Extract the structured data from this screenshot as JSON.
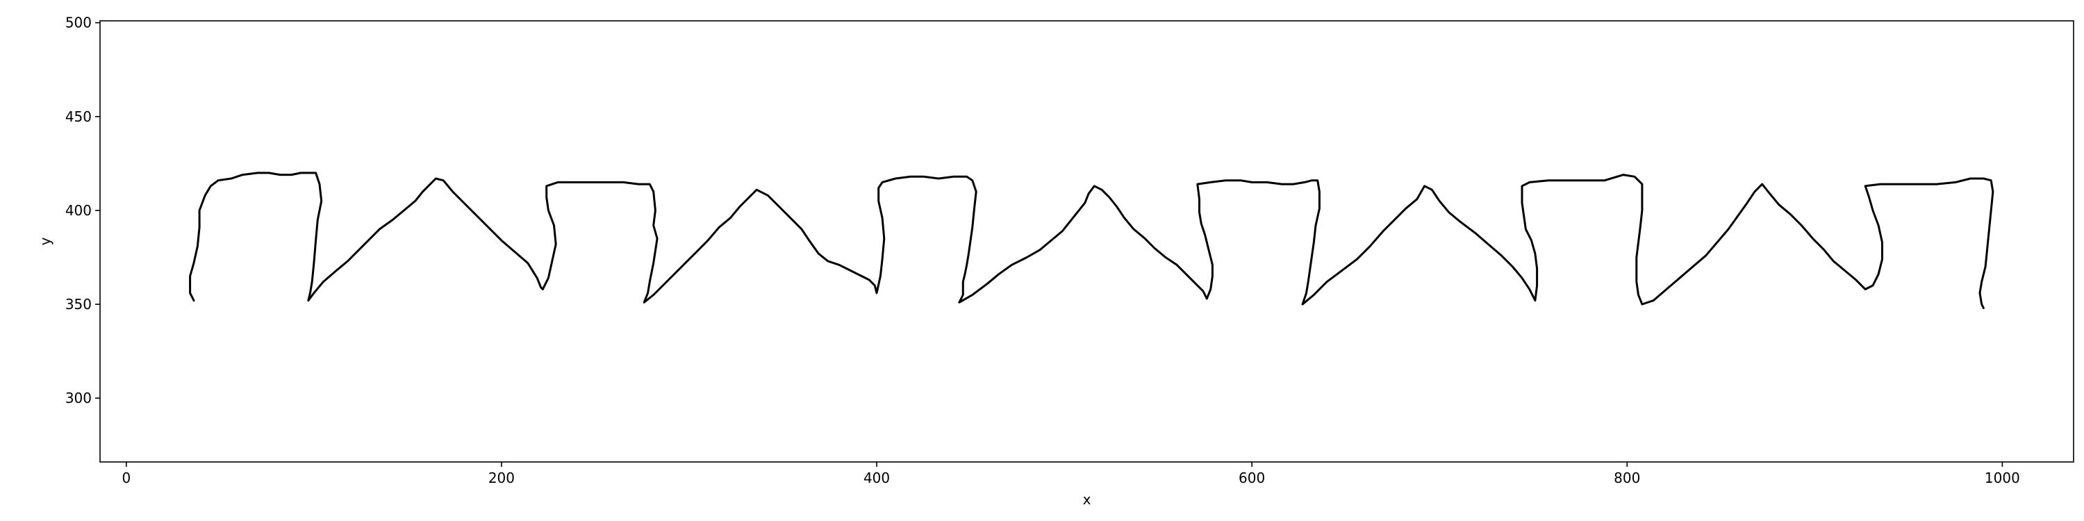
{
  "chart_data": {
    "type": "line",
    "title": "",
    "xlabel": "x",
    "ylabel": "y",
    "xlim": [
      -14,
      1038
    ],
    "ylim": [
      266,
      501
    ],
    "x_ticks": [
      0,
      200,
      400,
      600,
      800,
      1000
    ],
    "y_ticks": [
      300,
      350,
      400,
      450,
      500
    ],
    "grid": false,
    "legend": "none",
    "series": [
      {
        "color": "#000000",
        "points": [
          [
            36,
            352
          ],
          [
            35,
            354
          ],
          [
            34,
            356
          ],
          [
            34,
            365
          ],
          [
            36,
            372
          ],
          [
            38,
            381
          ],
          [
            39,
            391
          ],
          [
            39,
            400
          ],
          [
            42,
            408
          ],
          [
            45,
            413
          ],
          [
            49,
            416
          ],
          [
            56,
            417
          ],
          [
            62,
            419
          ],
          [
            70,
            420
          ],
          [
            76,
            420
          ],
          [
            82,
            419
          ],
          [
            88,
            419
          ],
          [
            93,
            420
          ],
          [
            98,
            420
          ],
          [
            101,
            420
          ],
          [
            103,
            414
          ],
          [
            104,
            405
          ],
          [
            102,
            395
          ],
          [
            101,
            384
          ],
          [
            100,
            372
          ],
          [
            99,
            362
          ],
          [
            98,
            356
          ],
          [
            97,
            352
          ],
          [
            100,
            356
          ],
          [
            105,
            362
          ],
          [
            112,
            368
          ],
          [
            118,
            373
          ],
          [
            124,
            379
          ],
          [
            130,
            385
          ],
          [
            135,
            390
          ],
          [
            142,
            395
          ],
          [
            148,
            400
          ],
          [
            154,
            405
          ],
          [
            158,
            410
          ],
          [
            162,
            414
          ],
          [
            165,
            417
          ],
          [
            169,
            416
          ],
          [
            174,
            410
          ],
          [
            179,
            405
          ],
          [
            186,
            398
          ],
          [
            193,
            391
          ],
          [
            200,
            384
          ],
          [
            207,
            378
          ],
          [
            214,
            372
          ],
          [
            219,
            364
          ],
          [
            221,
            359
          ],
          [
            222,
            358
          ],
          [
            225,
            364
          ],
          [
            227,
            373
          ],
          [
            229,
            382
          ],
          [
            228,
            392
          ],
          [
            225,
            400
          ],
          [
            224,
            407
          ],
          [
            224,
            413
          ],
          [
            230,
            415
          ],
          [
            237,
            415
          ],
          [
            245,
            415
          ],
          [
            255,
            415
          ],
          [
            265,
            415
          ],
          [
            273,
            414
          ],
          [
            279,
            414
          ],
          [
            281,
            410
          ],
          [
            282,
            400
          ],
          [
            281,
            392
          ],
          [
            283,
            385
          ],
          [
            281,
            372
          ],
          [
            279,
            362
          ],
          [
            278,
            356
          ],
          [
            276,
            351
          ],
          [
            281,
            355
          ],
          [
            286,
            360
          ],
          [
            292,
            366
          ],
          [
            298,
            372
          ],
          [
            304,
            378
          ],
          [
            310,
            384
          ],
          [
            316,
            391
          ],
          [
            322,
            396
          ],
          [
            327,
            402
          ],
          [
            332,
            407
          ],
          [
            336,
            411
          ],
          [
            342,
            408
          ],
          [
            348,
            402
          ],
          [
            354,
            396
          ],
          [
            360,
            390
          ],
          [
            364,
            384
          ],
          [
            369,
            377
          ],
          [
            374,
            373
          ],
          [
            380,
            371
          ],
          [
            386,
            368
          ],
          [
            392,
            365
          ],
          [
            396,
            363
          ],
          [
            399,
            360
          ],
          [
            400,
            356
          ],
          [
            402,
            365
          ],
          [
            403,
            374
          ],
          [
            404,
            385
          ],
          [
            403,
            396
          ],
          [
            401,
            405
          ],
          [
            401,
            412
          ],
          [
            403,
            415
          ],
          [
            410,
            417
          ],
          [
            418,
            418
          ],
          [
            425,
            418
          ],
          [
            433,
            417
          ],
          [
            441,
            418
          ],
          [
            448,
            418
          ],
          [
            451,
            416
          ],
          [
            453,
            410
          ],
          [
            452,
            401
          ],
          [
            451,
            391
          ],
          [
            450,
            384
          ],
          [
            449,
            377
          ],
          [
            448,
            371
          ],
          [
            447,
            366
          ],
          [
            446,
            362
          ],
          [
            446,
            355
          ],
          [
            444,
            351
          ],
          [
            451,
            355
          ],
          [
            459,
            361
          ],
          [
            465,
            366
          ],
          [
            472,
            371
          ],
          [
            480,
            375
          ],
          [
            487,
            379
          ],
          [
            493,
            384
          ],
          [
            499,
            389
          ],
          [
            503,
            394
          ],
          [
            507,
            399
          ],
          [
            511,
            404
          ],
          [
            513,
            409
          ],
          [
            516,
            413
          ],
          [
            520,
            411
          ],
          [
            524,
            407
          ],
          [
            528,
            402
          ],
          [
            532,
            396
          ],
          [
            537,
            390
          ],
          [
            543,
            385
          ],
          [
            548,
            380
          ],
          [
            554,
            375
          ],
          [
            560,
            371
          ],
          [
            565,
            366
          ],
          [
            570,
            361
          ],
          [
            574,
            357
          ],
          [
            576,
            353
          ],
          [
            578,
            358
          ],
          [
            579,
            365
          ],
          [
            579,
            371
          ],
          [
            577,
            379
          ],
          [
            575,
            387
          ],
          [
            573,
            393
          ],
          [
            572,
            399
          ],
          [
            572,
            406
          ],
          [
            571,
            414
          ],
          [
            578,
            415
          ],
          [
            586,
            416
          ],
          [
            594,
            416
          ],
          [
            600,
            415
          ],
          [
            608,
            415
          ],
          [
            616,
            414
          ],
          [
            622,
            414
          ],
          [
            628,
            415
          ],
          [
            632,
            416
          ],
          [
            635,
            416
          ],
          [
            636,
            410
          ],
          [
            636,
            401
          ],
          [
            634,
            392
          ],
          [
            633,
            383
          ],
          [
            632,
            376
          ],
          [
            631,
            369
          ],
          [
            630,
            362
          ],
          [
            629,
            356
          ],
          [
            627,
            350
          ],
          [
            633,
            355
          ],
          [
            640,
            362
          ],
          [
            648,
            368
          ],
          [
            656,
            374
          ],
          [
            663,
            381
          ],
          [
            670,
            389
          ],
          [
            676,
            395
          ],
          [
            682,
            401
          ],
          [
            688,
            406
          ],
          [
            692,
            413
          ],
          [
            696,
            411
          ],
          [
            700,
            405
          ],
          [
            705,
            399
          ],
          [
            711,
            394
          ],
          [
            719,
            388
          ],
          [
            726,
            382
          ],
          [
            733,
            376
          ],
          [
            739,
            370
          ],
          [
            744,
            364
          ],
          [
            748,
            358
          ],
          [
            751,
            352
          ],
          [
            752,
            360
          ],
          [
            752,
            369
          ],
          [
            751,
            377
          ],
          [
            749,
            384
          ],
          [
            746,
            390
          ],
          [
            745,
            397
          ],
          [
            744,
            404
          ],
          [
            744,
            413
          ],
          [
            748,
            415
          ],
          [
            758,
            416
          ],
          [
            768,
            416
          ],
          [
            778,
            416
          ],
          [
            788,
            416
          ],
          [
            798,
            419
          ],
          [
            804,
            418
          ],
          [
            808,
            414
          ],
          [
            808,
            408
          ],
          [
            808,
            400
          ],
          [
            807,
            391
          ],
          [
            806,
            383
          ],
          [
            805,
            375
          ],
          [
            805,
            368
          ],
          [
            805,
            362
          ],
          [
            806,
            355
          ],
          [
            808,
            350
          ],
          [
            814,
            352
          ],
          [
            821,
            358
          ],
          [
            828,
            364
          ],
          [
            835,
            370
          ],
          [
            842,
            376
          ],
          [
            848,
            383
          ],
          [
            854,
            390
          ],
          [
            859,
            397
          ],
          [
            864,
            404
          ],
          [
            868,
            410
          ],
          [
            872,
            414
          ],
          [
            876,
            409
          ],
          [
            881,
            403
          ],
          [
            887,
            398
          ],
          [
            893,
            392
          ],
          [
            899,
            385
          ],
          [
            905,
            379
          ],
          [
            910,
            373
          ],
          [
            916,
            368
          ],
          [
            922,
            363
          ],
          [
            927,
            358
          ],
          [
            931,
            360
          ],
          [
            934,
            366
          ],
          [
            936,
            374
          ],
          [
            936,
            383
          ],
          [
            934,
            392
          ],
          [
            931,
            400
          ],
          [
            929,
            407
          ],
          [
            927,
            413
          ],
          [
            935,
            414
          ],
          [
            945,
            414
          ],
          [
            955,
            414
          ],
          [
            965,
            414
          ],
          [
            975,
            415
          ],
          [
            983,
            417
          ],
          [
            990,
            417
          ],
          [
            994,
            416
          ],
          [
            995,
            410
          ],
          [
            994,
            400
          ],
          [
            993,
            390
          ],
          [
            992,
            380
          ],
          [
            991,
            370
          ],
          [
            989,
            362
          ],
          [
            988,
            356
          ],
          [
            989,
            350
          ],
          [
            990,
            348
          ]
        ]
      }
    ]
  }
}
